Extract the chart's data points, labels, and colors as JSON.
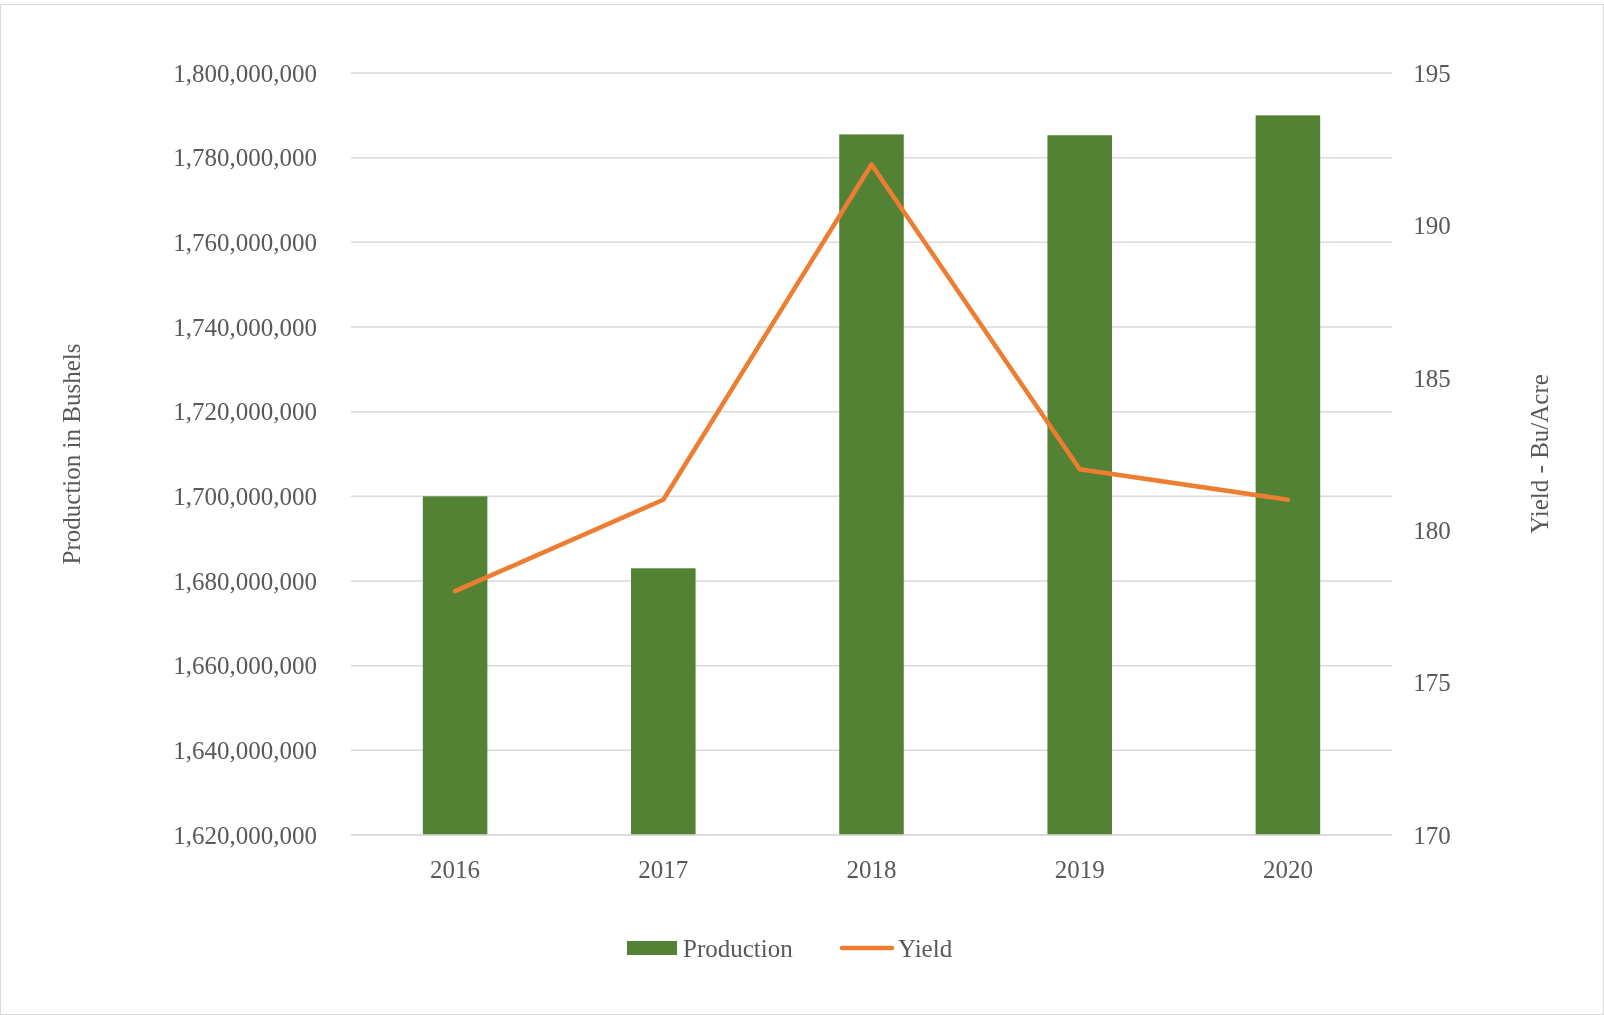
{
  "chart_data": {
    "type": "bar",
    "categories": [
      "2016",
      "2017",
      "2018",
      "2019",
      "2020"
    ],
    "ylabel": "Production in Bushels",
    "y2label": "Yield - Bu/Acre",
    "series": [
      {
        "name": "Production",
        "color": "#548235",
        "values": [
          1700000000,
          1683000000,
          1785500000,
          1785300000,
          1790000000
        ]
      },
      {
        "name": "Yield",
        "type": "line",
        "axis": "y2",
        "color": "#ed7d31",
        "values": [
          178,
          181,
          192,
          182,
          181
        ]
      }
    ],
    "ylim": [
      1620000000,
      1800000000
    ],
    "yticks": [
      {
        "value": 1620000000,
        "label": "1,620,000,000"
      },
      {
        "value": 1640000000,
        "label": "1,640,000,000"
      },
      {
        "value": 1660000000,
        "label": "1,660,000,000"
      },
      {
        "value": 1680000000,
        "label": "1,680,000,000"
      },
      {
        "value": 1700000000,
        "label": "1,700,000,000"
      },
      {
        "value": 1720000000,
        "label": "1,720,000,000"
      },
      {
        "value": 1740000000,
        "label": "1,740,000,000"
      },
      {
        "value": 1760000000,
        "label": "1,760,000,000"
      },
      {
        "value": 1780000000,
        "label": "1,780,000,000"
      },
      {
        "value": 1800000000,
        "label": "1,800,000,000"
      }
    ],
    "y2lim": [
      170,
      195
    ],
    "y2ticks": [
      170,
      175,
      180,
      185,
      190,
      195
    ],
    "grid": "y",
    "legend": "bottom",
    "marker": "none",
    "line_style": "solid"
  }
}
